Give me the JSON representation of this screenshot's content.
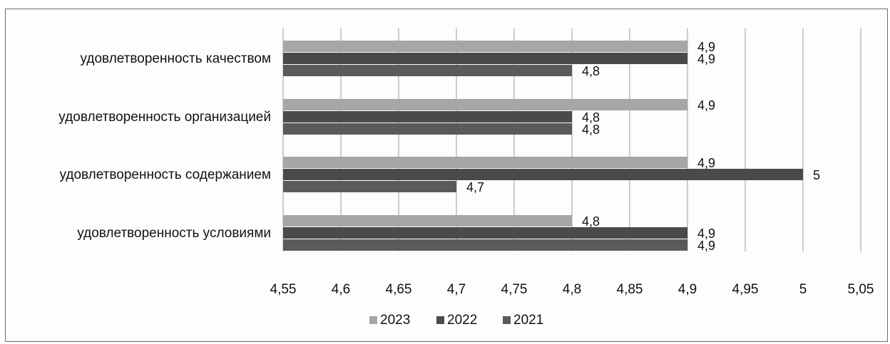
{
  "chart_data": {
    "type": "bar",
    "orientation": "horizontal",
    "categories": [
      "удовлетворенность качеством",
      "удовлетворенность организацией",
      "удовлетворенность содержанием",
      "удовлетворенность условиями"
    ],
    "series": [
      {
        "name": "2023",
        "values": [
          4.9,
          4.9,
          4.9,
          4.8
        ],
        "labels": [
          "4,9",
          "4,9",
          "4,9",
          "4,8"
        ],
        "color": "#a6a6a6"
      },
      {
        "name": "2022",
        "values": [
          4.9,
          4.8,
          5.0,
          4.9
        ],
        "labels": [
          "4,9",
          "4,8",
          "5",
          "4,9"
        ],
        "color": "#4a4a4a"
      },
      {
        "name": "2021",
        "values": [
          4.8,
          4.8,
          4.7,
          4.9
        ],
        "labels": [
          "4,8",
          "4,8",
          "4,7",
          "4,9"
        ],
        "color": "#5a5a5a"
      }
    ],
    "xlim": [
      4.55,
      5.05
    ],
    "xticks": [
      4.55,
      4.6,
      4.65,
      4.7,
      4.75,
      4.8,
      4.85,
      4.9,
      4.95,
      5.0,
      5.05
    ],
    "xtick_labels": [
      "4,55",
      "4,6",
      "4,65",
      "4,7",
      "4,75",
      "4,8",
      "4,85",
      "4,9",
      "4,95",
      "5",
      "5,05"
    ],
    "grid": true,
    "legend": "bottom",
    "title": "",
    "xlabel": "",
    "ylabel": ""
  }
}
